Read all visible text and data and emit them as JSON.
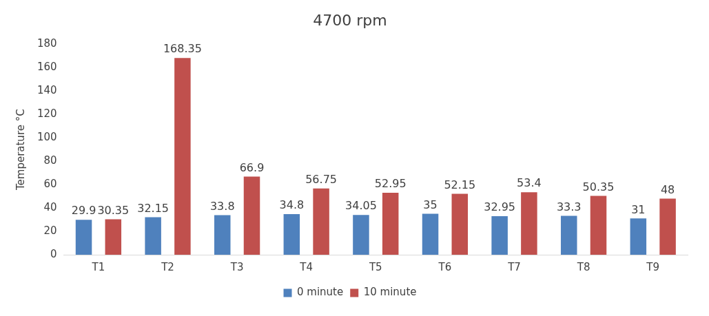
{
  "chart_data": {
    "type": "bar",
    "title": "4700 rpm",
    "ylabel": "Temperature °C",
    "categories": [
      "T1",
      "T2",
      "T3",
      "T4",
      "T5",
      "T6",
      "T7",
      "T8",
      "T9"
    ],
    "series": [
      {
        "name": "0 minute",
        "color": "#4f81bd",
        "values": [
          29.9,
          32.15,
          33.8,
          34.8,
          34.05,
          35,
          32.95,
          33.3,
          31
        ]
      },
      {
        "name": "10 minute",
        "color": "#c0504d",
        "values": [
          30.35,
          168.35,
          66.9,
          56.75,
          52.95,
          52.15,
          53.4,
          50.35,
          48
        ]
      }
    ],
    "ylim": [
      0,
      180
    ],
    "yticks": [
      0,
      20,
      40,
      60,
      80,
      100,
      120,
      140,
      160,
      180
    ],
    "grid": false,
    "legend": "bottom",
    "data_labels": true
  }
}
